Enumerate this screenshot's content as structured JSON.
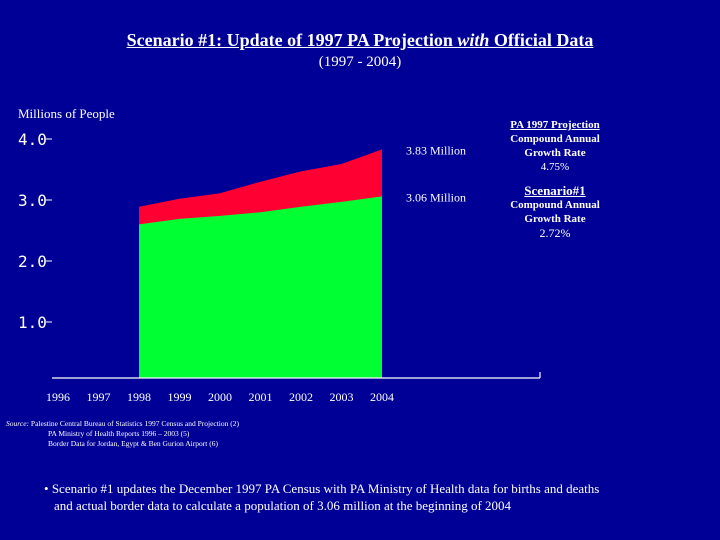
{
  "slide": {
    "title_prefix": "Scenario #1:  Update of 1997 PA Projection ",
    "title_italic": "with",
    "title_suffix": " Official Data",
    "subtitle": "(1997 - 2004)",
    "y_axis_label": "Millions of People"
  },
  "side_panel": {
    "projection_title_line1": "PA 1997 Projection",
    "projection_sub_line1": "Compound Annual",
    "projection_sub_line2": "Growth Rate",
    "projection_rate": "4.75%",
    "scenario_title": "Scenario#1",
    "scenario_sub_line1": "Compound Annual",
    "scenario_sub_line2": "Growth Rate",
    "scenario_rate": "2.72%"
  },
  "sources": {
    "lead": "Source:",
    "line1": "Palestine Central Bureau of Statistics 1997 Census and Projection (2)",
    "line2": "PA Ministry of Health Reports 1996 – 2003 (5)",
    "line3": "Border Data for Jordan, Egypt & Ben Gurion Airport (6)"
  },
  "bullet": {
    "symbol": "•",
    "text_line1": "Scenario #1 updates the December 1997 PA Census with PA Ministry of Health data for births and deaths",
    "text_line2": "and actual border data to calculate a population of 3.06 million at the beginning of 2004"
  },
  "chart_data": {
    "type": "area",
    "title": "Scenario #1:  Update of 1997 PA Projection with Official Data",
    "ylabel": "Millions of People",
    "ylim": [
      0,
      4.0
    ],
    "y_ticks": [
      "4.0",
      "3.0",
      "2.0",
      "1.0"
    ],
    "y_tick_values": [
      4.0,
      3.0,
      2.0,
      1.0
    ],
    "x_tick_labels": [
      "1996",
      "1997",
      "1998",
      "1999",
      "2000",
      "2001",
      "2002",
      "2003",
      "2004"
    ],
    "x": [
      1998,
      1999,
      2000,
      2001,
      2002,
      2003,
      2004
    ],
    "series": [
      {
        "name": "PA 1997 Projection",
        "color": "#ff0033",
        "values": [
          2.89,
          3.02,
          3.11,
          3.3,
          3.47,
          3.59,
          3.83
        ]
      },
      {
        "name": "Scenario #1",
        "color": "#00ff33",
        "values": [
          2.6,
          2.69,
          2.74,
          2.8,
          2.89,
          2.97,
          3.06
        ]
      }
    ],
    "annotations": [
      {
        "label": "3.83 Million",
        "value": 3.83
      },
      {
        "label": "3.06 Million",
        "value": 3.06
      }
    ]
  }
}
